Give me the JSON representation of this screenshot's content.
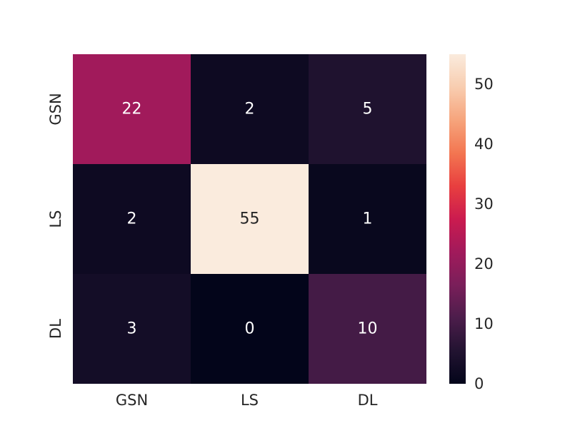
{
  "chart_data": {
    "type": "heatmap",
    "title": "",
    "xlabel": "",
    "ylabel": "",
    "x_categories": [
      "GSN",
      "LS",
      "DL"
    ],
    "y_categories": [
      "GSN",
      "LS",
      "DL"
    ],
    "matrix": [
      [
        22,
        2,
        5
      ],
      [
        2,
        55,
        1
      ],
      [
        3,
        0,
        10
      ]
    ],
    "colorbar": {
      "min": 0,
      "max": 55,
      "ticks": [
        0,
        10,
        20,
        30,
        40,
        50
      ]
    },
    "colormap": "rocket",
    "colormap_stops": [
      "#03051a",
      "#221331",
      "#4c1d4b",
      "#7a1f5a",
      "#a11a5b",
      "#cb1b4f",
      "#e83f3f",
      "#f37651",
      "#f6a47c",
      "#f8cdb0",
      "#faebdd"
    ],
    "annotation_colors": {
      "dark": "#262626",
      "light": "#ffffff"
    },
    "grid": false,
    "legend": "colorbar-right"
  }
}
